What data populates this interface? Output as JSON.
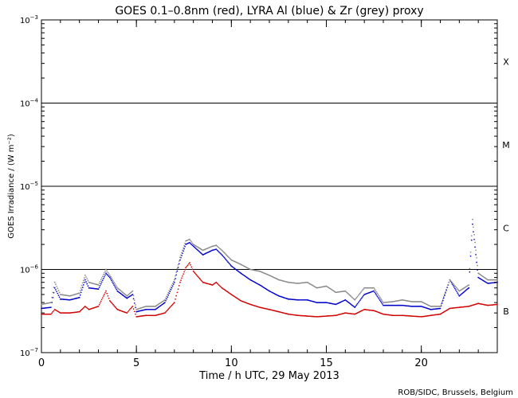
{
  "chart_data": {
    "type": "scatter",
    "title": "GOES 0.1–0.8nm (red), LYRA Al (blue) & Zr (grey) proxy",
    "xlabel": "Time / h UTC, 29 May 2013",
    "ylabel": "GOES Irradiance / (W m⁻²)",
    "credit": "ROB/SIDC, Brussels, Belgium",
    "xlim": [
      0,
      24
    ],
    "ylim": [
      1e-07,
      0.001
    ],
    "yscale": "log",
    "x_ticks": [
      {
        "value": 0,
        "label": "0"
      },
      {
        "value": 5,
        "label": "5"
      },
      {
        "value": 10,
        "label": "10"
      },
      {
        "value": 15,
        "label": "15"
      },
      {
        "value": 20,
        "label": "20"
      }
    ],
    "y_ticks": [
      {
        "value": 1e-07,
        "base": "10",
        "exp": "−7"
      },
      {
        "value": 1e-06,
        "base": "10",
        "exp": "−6"
      },
      {
        "value": 1e-05,
        "base": "10",
        "exp": "−5"
      },
      {
        "value": 0.0001,
        "base": "10",
        "exp": "−4"
      },
      {
        "value": 0.001,
        "base": "10",
        "exp": "−3"
      }
    ],
    "flare_class_lines": [
      1e-06,
      1e-05,
      0.0001
    ],
    "flare_classes": [
      {
        "label": "X",
        "value": 0.000316
      },
      {
        "label": "M",
        "value": 3.16e-05
      },
      {
        "label": "C",
        "value": 3.16e-06
      },
      {
        "label": "B",
        "value": 3.16e-07
      }
    ],
    "series": [
      {
        "color": "#d00000",
        "x": [
          0.0,
          0.5,
          0.7,
          1.0,
          1.5,
          2.0,
          2.3,
          2.5,
          3.0,
          3.4,
          3.6,
          4.0,
          4.5,
          4.8,
          5.0,
          5.5,
          6.0,
          6.5,
          7.0,
          7.3,
          7.6,
          7.8,
          8.0,
          8.5,
          9.0,
          9.2,
          9.5,
          10.0,
          10.5,
          11.0,
          11.5,
          12.0,
          12.5,
          13.0,
          13.5,
          14.0,
          14.5,
          15.0,
          15.5,
          16.0,
          16.5,
          17.0,
          17.5,
          18.0,
          18.5,
          19.0,
          19.5,
          20.0,
          20.5,
          21.0,
          21.5,
          22.0,
          22.5,
          23.0,
          23.5,
          24.0
        ],
        "y": [
          2.9e-07,
          2.9e-07,
          3.3e-07,
          3e-07,
          3e-07,
          3.1e-07,
          3.6e-07,
          3.3e-07,
          3.6e-07,
          5.5e-07,
          4.2e-07,
          3.3e-07,
          3e-07,
          3.6e-07,
          2.7e-07,
          2.8e-07,
          2.8e-07,
          3e-07,
          4e-07,
          7e-07,
          1.05e-06,
          1.2e-06,
          9.5e-07,
          7e-07,
          6.5e-07,
          7e-07,
          6e-07,
          5e-07,
          4.2e-07,
          3.8e-07,
          3.5e-07,
          3.3e-07,
          3.1e-07,
          2.9e-07,
          2.8e-07,
          2.75e-07,
          2.7e-07,
          2.75e-07,
          2.8e-07,
          3e-07,
          2.9e-07,
          3.3e-07,
          3.2e-07,
          2.9e-07,
          2.8e-07,
          2.8e-07,
          2.75e-07,
          2.7e-07,
          2.8e-07,
          2.9e-07,
          3.4e-07,
          3.5e-07,
          3.6e-07,
          3.9e-07,
          3.7e-07,
          3.8e-07
        ]
      },
      {
        "color": "#0000cc",
        "x": [
          0.0,
          0.5,
          0.7,
          1.0,
          1.5,
          2.0,
          2.3,
          2.5,
          3.0,
          3.4,
          3.6,
          4.0,
          4.5,
          4.8,
          5.0,
          5.5,
          6.0,
          6.5,
          7.0,
          7.3,
          7.6,
          7.8,
          8.0,
          8.5,
          9.0,
          9.2,
          9.5,
          10.0,
          10.5,
          11.0,
          11.5,
          12.0,
          12.5,
          13.0,
          13.5,
          14.0,
          14.5,
          15.0,
          15.5,
          16.0,
          16.5,
          17.0,
          17.5,
          18.0,
          18.5,
          19.0,
          19.5,
          20.0,
          20.5,
          21.0,
          21.5,
          22.0,
          22.5,
          22.7,
          23.0,
          23.5,
          24.0
        ],
        "y": [
          3.4e-07,
          3.5e-07,
          6e-07,
          4.4e-07,
          4.3e-07,
          4.6e-07,
          7.5e-07,
          6e-07,
          5.8e-07,
          9e-07,
          8e-07,
          5.5e-07,
          4.5e-07,
          5e-07,
          3.1e-07,
          3.3e-07,
          3.3e-07,
          4e-07,
          7e-07,
          1.3e-06,
          2e-06,
          2.1e-06,
          1.9e-06,
          1.5e-06,
          1.7e-06,
          1.75e-06,
          1.5e-06,
          1.1e-06,
          9e-07,
          7.5e-07,
          6.5e-07,
          5.5e-07,
          4.8e-07,
          4.4e-07,
          4.3e-07,
          4.3e-07,
          4e-07,
          4e-07,
          3.8e-07,
          4.3e-07,
          3.5e-07,
          5e-07,
          5.5e-07,
          3.7e-07,
          3.7e-07,
          3.7e-07,
          3.6e-07,
          3.6e-07,
          3.3e-07,
          3.4e-07,
          7.5e-07,
          4.8e-07,
          6e-07,
          3.5e-06,
          8e-07,
          6.8e-07,
          7e-07
        ]
      },
      {
        "color": "#888888",
        "x": [
          0.0,
          0.5,
          0.7,
          1.0,
          1.5,
          2.0,
          2.3,
          2.5,
          3.0,
          3.4,
          3.6,
          4.0,
          4.5,
          4.8,
          5.0,
          5.5,
          6.0,
          6.5,
          7.0,
          7.3,
          7.6,
          7.8,
          8.0,
          8.5,
          9.0,
          9.2,
          9.5,
          10.0,
          10.5,
          11.0,
          11.5,
          12.0,
          12.5,
          13.0,
          13.5,
          14.0,
          14.5,
          15.0,
          15.5,
          16.0,
          16.5,
          17.0,
          17.5,
          18.0,
          18.5,
          19.0,
          19.5,
          20.0,
          20.5,
          21.0,
          21.5,
          22.0,
          22.5,
          22.7,
          23.0,
          23.5,
          24.0
        ],
        "y": [
          3.8e-07,
          4e-07,
          7e-07,
          5e-07,
          4.8e-07,
          5.2e-07,
          8.5e-07,
          7e-07,
          6.5e-07,
          1e-06,
          8.5e-07,
          6e-07,
          4.8e-07,
          5.5e-07,
          3.3e-07,
          3.6e-07,
          3.6e-07,
          4.3e-07,
          7.5e-07,
          1.4e-06,
          2.2e-06,
          2.3e-06,
          2e-06,
          1.7e-06,
          1.9e-06,
          1.95e-06,
          1.7e-06,
          1.3e-06,
          1.15e-06,
          1e-06,
          9.5e-07,
          8.5e-07,
          7.5e-07,
          7e-07,
          6.8e-07,
          7e-07,
          6e-07,
          6.3e-07,
          5.3e-07,
          5.5e-07,
          4.3e-07,
          6e-07,
          6e-07,
          4e-07,
          4.1e-07,
          4.3e-07,
          4.1e-07,
          4.1e-07,
          3.6e-07,
          3.6e-07,
          7.5e-07,
          5.5e-07,
          6.5e-07,
          4e-06,
          9e-07,
          7.5e-07,
          7.5e-07
        ]
      }
    ]
  }
}
